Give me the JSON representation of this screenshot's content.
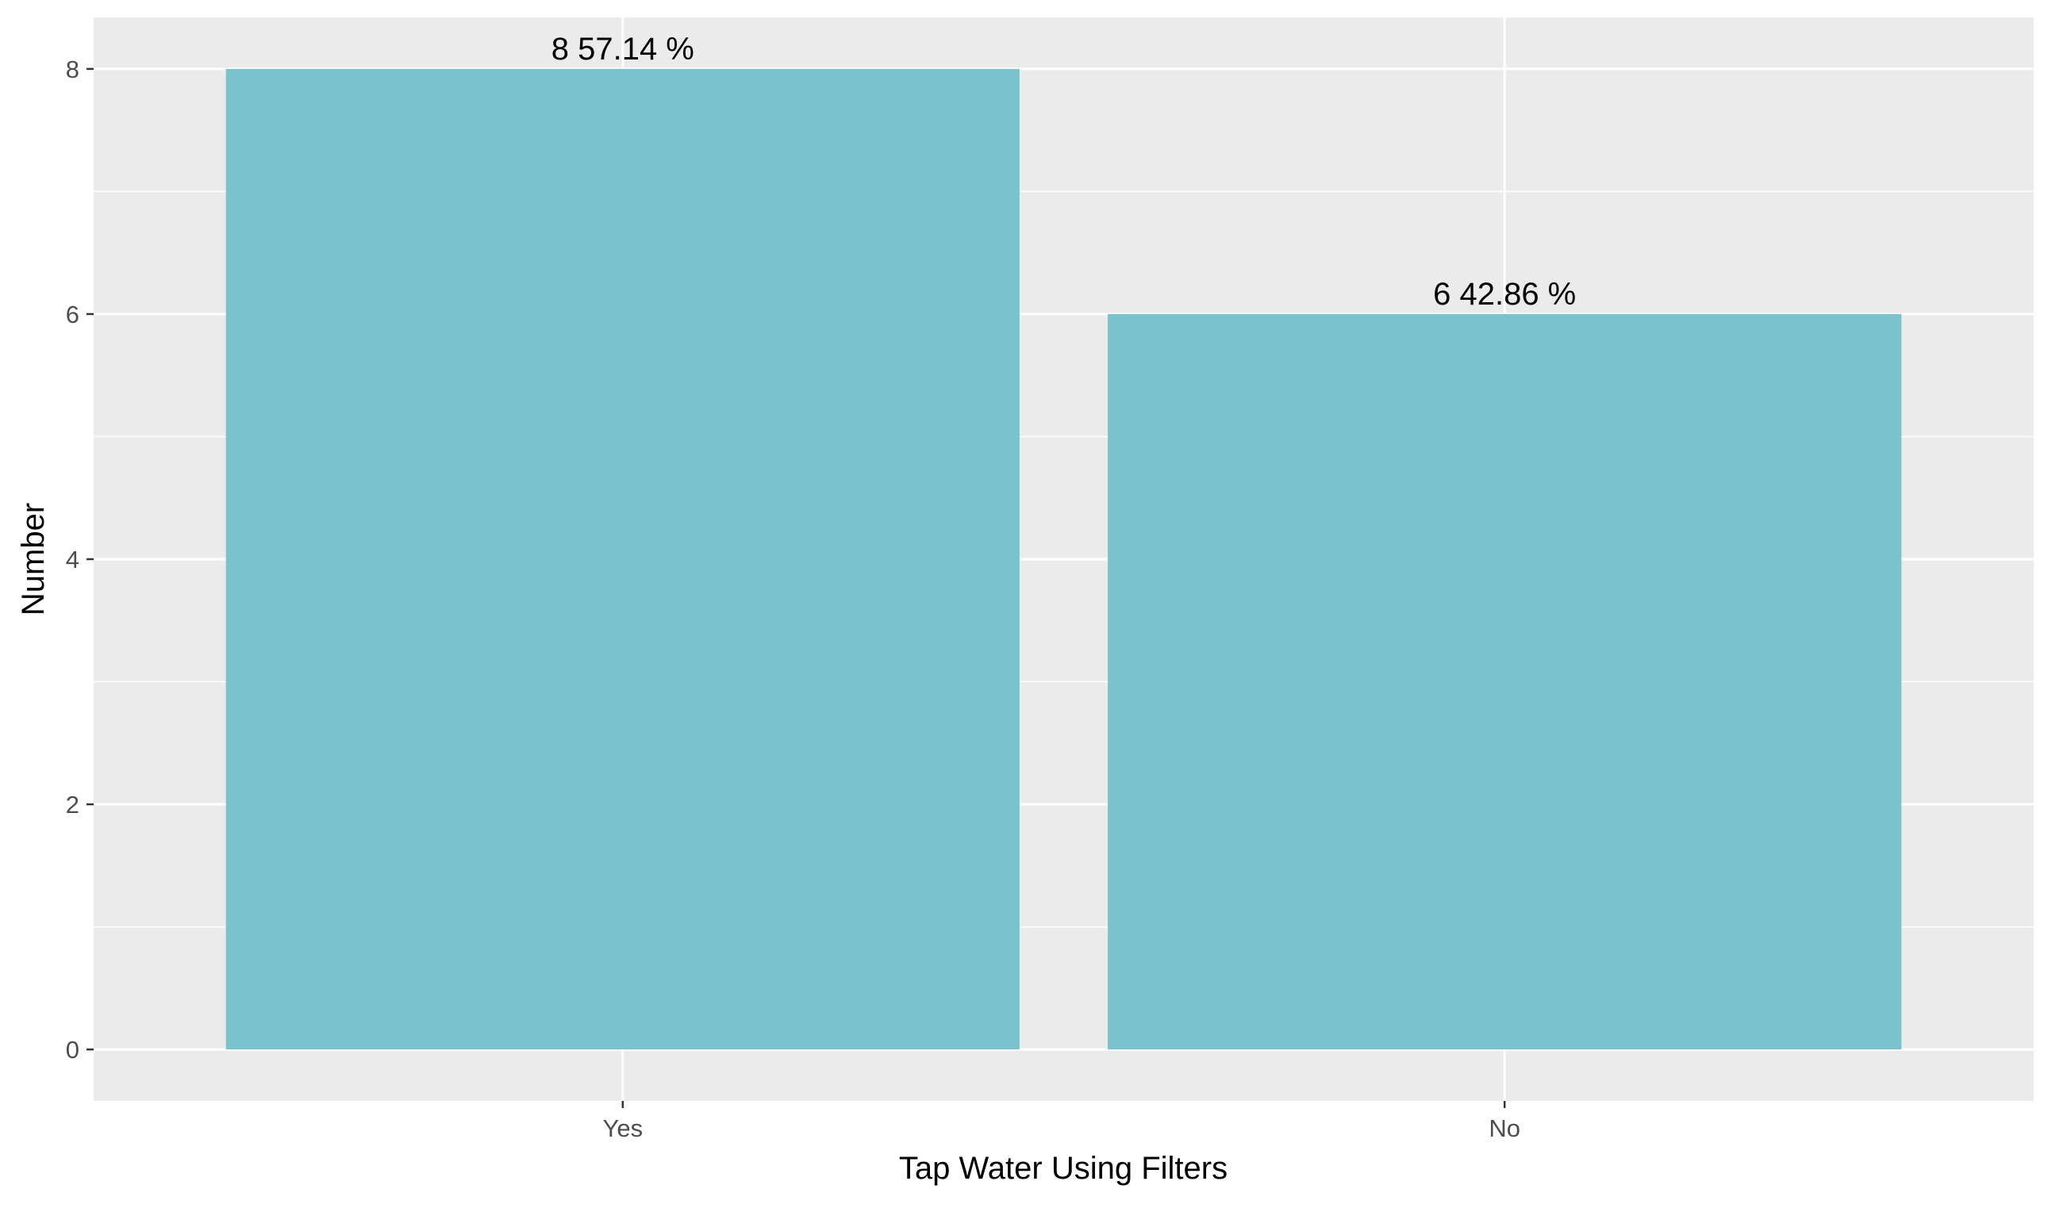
{
  "chart_data": {
    "type": "bar",
    "categories": [
      "Yes",
      "No"
    ],
    "values": [
      8,
      6
    ],
    "data_labels": [
      "8  57.14 %",
      "6  42.86 %"
    ],
    "title": "",
    "xlabel": "Tap Water Using Filters",
    "ylabel": "Number",
    "ylim": [
      -0.42,
      8.42
    ],
    "y_ticks": [
      0,
      2,
      4,
      6,
      8
    ],
    "y_minor_ticks": [
      1,
      3,
      5,
      7
    ],
    "grid": true,
    "legend": "none",
    "colors": {
      "bar": "#7BC3CC",
      "panel_background": "#EBEBEB",
      "grid_line": "#FFFFFF",
      "tick_label": "#4D4D4D",
      "axis_tick": "#333333",
      "text": "#000000"
    }
  }
}
